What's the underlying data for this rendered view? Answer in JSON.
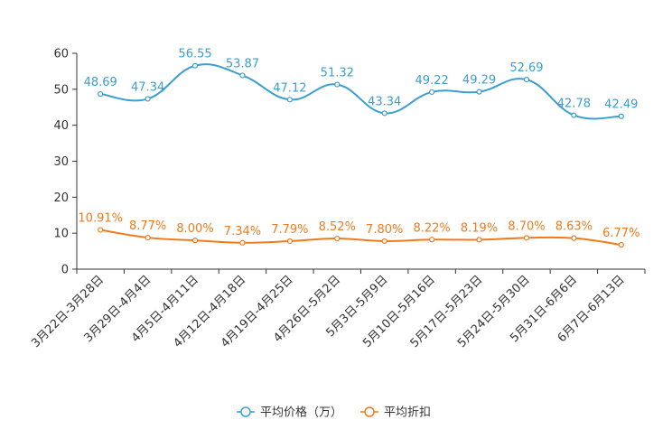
{
  "chart_data": {
    "type": "line",
    "title": "",
    "xlabel": "",
    "ylabel": "",
    "ylim": [
      0,
      60
    ],
    "yticks": [
      0,
      10,
      20,
      30,
      40,
      50,
      60
    ],
    "grid": false,
    "legend_position": "bottom-center",
    "categories": [
      "3月22日-3月28日",
      "3月29日-4月4日",
      "4月5日-4月11日",
      "4月12日-4月18日",
      "4月19日-4月25日",
      "4月26日-5月2日",
      "5月3日-5月9日",
      "5月10日-5月16日",
      "5月17日-5月23日",
      "5月24日-5月30日",
      "5月31日-6月6日",
      "6月7日-6月13日"
    ],
    "series": [
      {
        "name": "平均价格（万）",
        "color": "#3a9fd0",
        "values": [
          48.69,
          47.34,
          56.55,
          53.87,
          47.12,
          51.32,
          43.34,
          49.22,
          49.29,
          52.69,
          42.78,
          42.49
        ],
        "labels": [
          "48.69",
          "47.34",
          "56.55",
          "53.87",
          "47.12",
          "51.32",
          "43.34",
          "49.22",
          "49.29",
          "52.69",
          "42.78",
          "42.49"
        ]
      },
      {
        "name": "平均折扣",
        "color": "#f07a1e",
        "values": [
          10.91,
          8.77,
          8.0,
          7.34,
          7.79,
          8.52,
          7.8,
          8.22,
          8.19,
          8.7,
          8.63,
          6.77
        ],
        "labels": [
          "10.91%",
          "8.77%",
          "8.00%",
          "7.34%",
          "7.79%",
          "8.52%",
          "7.80%",
          "8.22%",
          "8.19%",
          "8.70%",
          "8.63%",
          "6.77%"
        ]
      }
    ]
  }
}
